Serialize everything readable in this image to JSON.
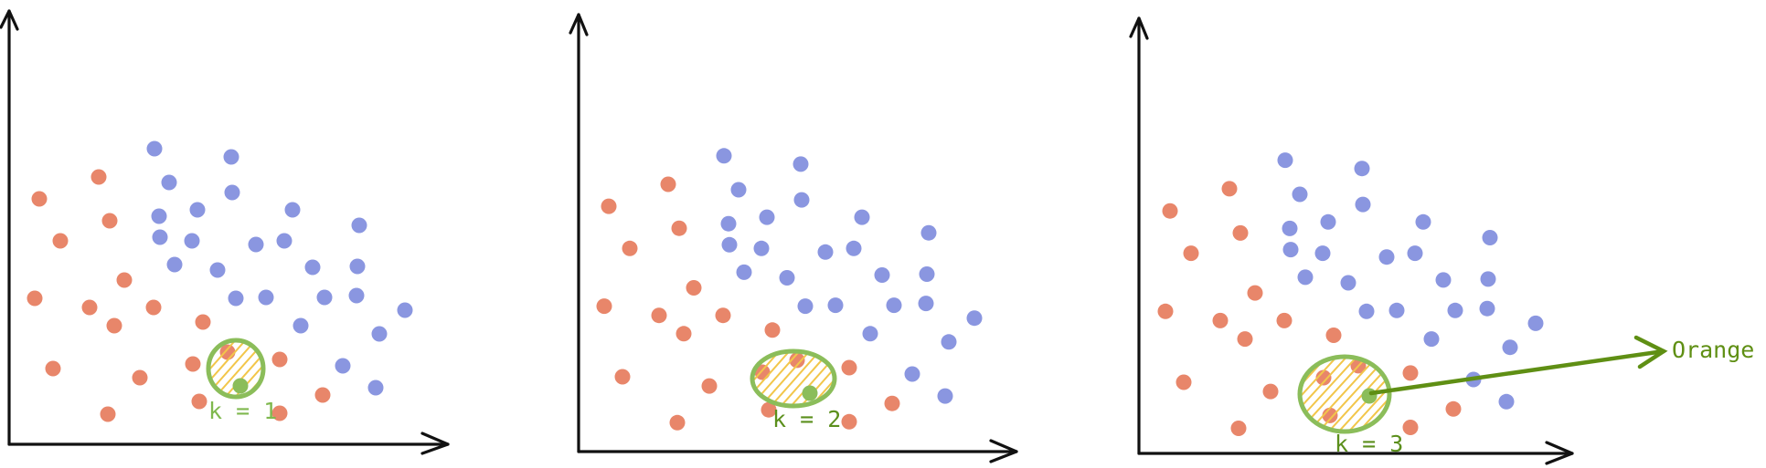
{
  "colors": {
    "orange": "#e8866a",
    "blue": "#8a96e0",
    "neighborhood": "#8bbd5a",
    "hatch": "#f2c64a",
    "query": "#8bbd5a",
    "label_light": "#7fb84e",
    "label_dark": "#5b8f1c",
    "prediction_arrow": "#5f8f14",
    "axis": "#111111"
  },
  "panels": [
    {
      "id": "panel-k1",
      "k_label": "k = 1",
      "k": 1
    },
    {
      "id": "panel-k2",
      "k_label": "k = 2",
      "k": 2
    },
    {
      "id": "panel-k3",
      "k_label": "k = 3",
      "k": 3
    }
  ],
  "prediction": {
    "label": "Orange",
    "icon": "arrow-right-icon"
  }
}
